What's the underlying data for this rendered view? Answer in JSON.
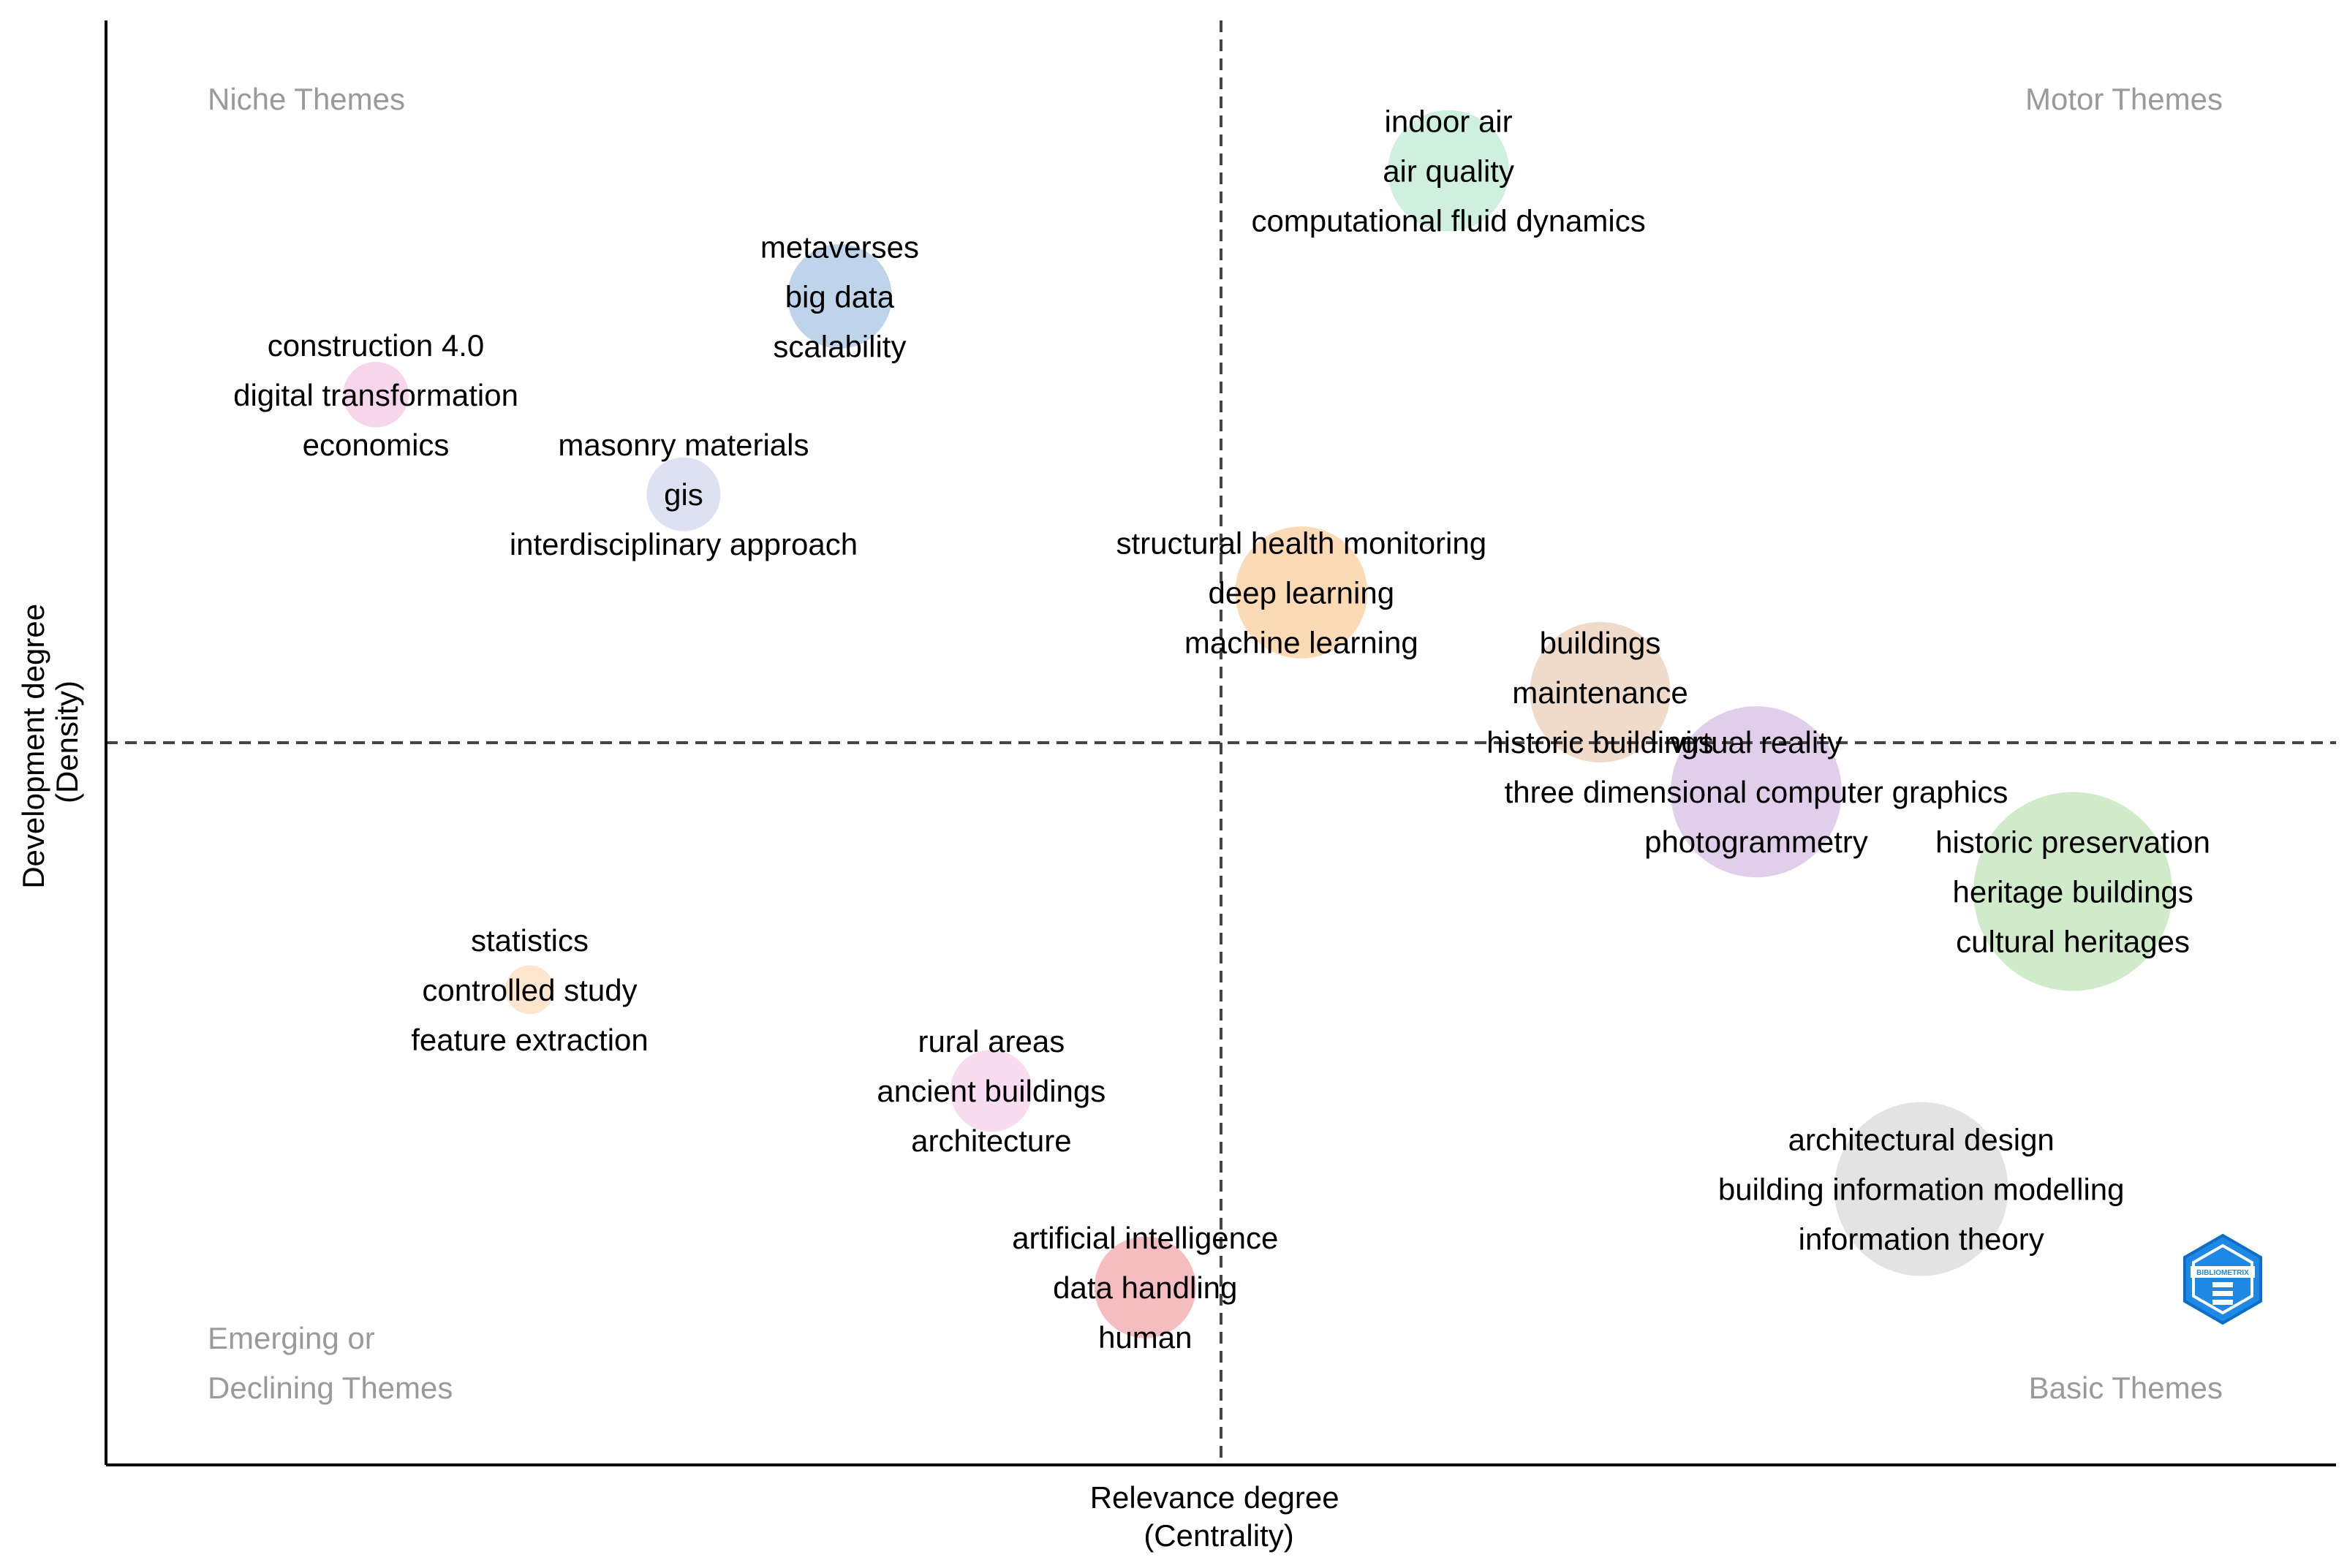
{
  "chart_data": {
    "type": "scatter",
    "title": "",
    "xlabel": [
      "Relevance degree",
      "(Centrality)"
    ],
    "ylabel": [
      "Development degree",
      "(Density)"
    ],
    "xlim": [
      0,
      100
    ],
    "ylim": [
      0,
      100
    ],
    "x_median": 50,
    "y_median": 50,
    "quadrants": {
      "niche": [
        "Niche Themes"
      ],
      "motor": [
        "Motor Themes"
      ],
      "emerging": [
        "Emerging or",
        "Declining Themes"
      ],
      "basic": [
        "Basic Themes"
      ]
    },
    "clusters": [
      {
        "x": 60.2,
        "y": 89.6,
        "size": 3.2,
        "color": "#c7ecd9",
        "terms": [
          "indoor air",
          "air quality",
          "computational fluid dynamics"
        ]
      },
      {
        "x": 32.9,
        "y": 80.9,
        "size": 2.6,
        "color": "#b3cde8",
        "terms": [
          "metaverses",
          "big data",
          "scalability"
        ]
      },
      {
        "x": 12.1,
        "y": 74.1,
        "size": 1.2,
        "color": "#f6cfe9",
        "terms": [
          "construction 4.0",
          "digital transformation",
          "economics"
        ]
      },
      {
        "x": 25.9,
        "y": 67.2,
        "size": 1.5,
        "color": "#d8dcef",
        "terms": [
          "masonry materials",
          "gis",
          "interdisciplinary approach"
        ]
      },
      {
        "x": 53.6,
        "y": 60.4,
        "size": 3.6,
        "color": "#fdd4a9",
        "terms": [
          "structural health monitoring",
          "deep learning",
          "machine learning"
        ]
      },
      {
        "x": 67.0,
        "y": 53.5,
        "size": 3.9,
        "color": "#edd5c2",
        "terms": [
          "buildings",
          "maintenance",
          "historic buildings"
        ]
      },
      {
        "x": 74.0,
        "y": 46.6,
        "size": 5.0,
        "color": "#dcc6e6",
        "terms": [
          "virtual reality",
          "three dimensional computer graphics",
          "photogrammetry"
        ]
      },
      {
        "x": 88.2,
        "y": 39.7,
        "size": 6.0,
        "color": "#c7e7c1",
        "terms": [
          "historic preservation",
          "heritage buildings",
          "cultural heritages"
        ]
      },
      {
        "x": 19.0,
        "y": 32.9,
        "size": 0.6,
        "color": "#fde1c8",
        "terms": [
          "statistics",
          "controlled study",
          "feature extraction"
        ]
      },
      {
        "x": 39.7,
        "y": 25.9,
        "size": 1.8,
        "color": "#f9d6f0",
        "terms": [
          "rural areas",
          "ancient buildings",
          "architecture"
        ]
      },
      {
        "x": 81.4,
        "y": 19.1,
        "size": 5.1,
        "color": "#dedede",
        "terms": [
          "architectural design",
          "building information modelling",
          "information theory"
        ]
      },
      {
        "x": 46.6,
        "y": 12.3,
        "size": 2.5,
        "color": "#f5b1b6",
        "terms": [
          "artificial intelligence",
          "data handling",
          "human"
        ]
      }
    ]
  },
  "logo": {
    "text": "BIBLIOMETRIX"
  }
}
